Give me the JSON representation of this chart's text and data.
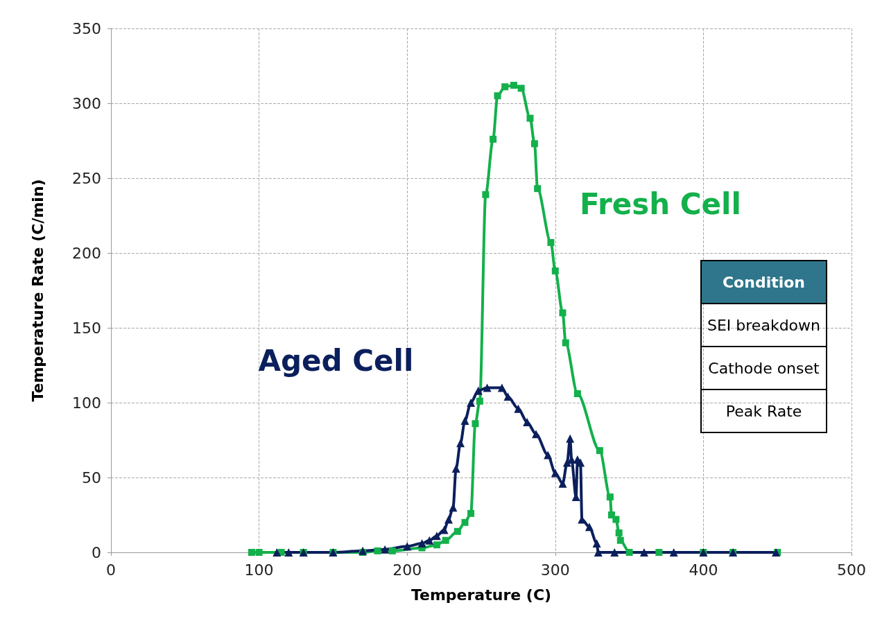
{
  "chart_data": {
    "type": "line",
    "xlabel": "Temperature (C)",
    "ylabel": "Temperature Rate (C/min)",
    "xlim": [
      0,
      500
    ],
    "xticks": [
      0,
      100,
      200,
      300,
      400,
      500
    ],
    "ylim": [
      0,
      350
    ],
    "yticks": [
      0,
      50,
      100,
      150,
      200,
      250,
      300,
      350
    ],
    "grid": true,
    "legend": false,
    "line_style": "solid",
    "series": [
      {
        "name": "Fresh Cell",
        "color": "#13b04b",
        "marker": "square",
        "x": [
          95,
          100,
          115,
          130,
          150,
          170,
          180,
          190,
          210,
          220,
          226,
          234,
          239,
          243,
          246,
          249,
          253,
          258,
          261,
          266,
          272,
          277,
          283,
          286,
          288,
          297,
          300,
          305,
          307,
          315,
          330,
          337,
          338,
          341,
          343,
          344,
          350,
          370,
          400,
          420,
          450
        ],
        "values": [
          0,
          0,
          0,
          0,
          0,
          0,
          1,
          1,
          3,
          5,
          8,
          14,
          20,
          26,
          86,
          101,
          239,
          276,
          305,
          311,
          312,
          310,
          290,
          273,
          243,
          207,
          188,
          160,
          140,
          106,
          68,
          37,
          25,
          22,
          13,
          8,
          0,
          0,
          0,
          0,
          0
        ]
      },
      {
        "name": "Aged Cell",
        "color": "#0b1f5c",
        "marker": "triangle",
        "x": [
          112,
          120,
          130,
          150,
          170,
          185,
          200,
          210,
          215,
          220,
          225,
          228,
          231,
          233,
          236,
          239,
          243,
          248,
          254,
          264,
          268,
          275,
          281,
          287,
          295,
          300,
          305,
          308,
          310,
          311,
          314,
          315,
          317,
          318,
          323,
          328,
          329,
          340,
          360,
          380,
          400,
          420,
          449
        ],
        "values": [
          0,
          0,
          0,
          0,
          1,
          2,
          4,
          6,
          8,
          11,
          15,
          22,
          30,
          56,
          73,
          88,
          100,
          108,
          110,
          110,
          104,
          96,
          87,
          79,
          65,
          53,
          46,
          60,
          76,
          62,
          37,
          62,
          60,
          22,
          17,
          6,
          0,
          0,
          0,
          0,
          0,
          0,
          0
        ]
      }
    ],
    "annotations": [
      "Condition",
      "SEI breakdown",
      "Cathode onset",
      "Peak Rate"
    ]
  }
}
